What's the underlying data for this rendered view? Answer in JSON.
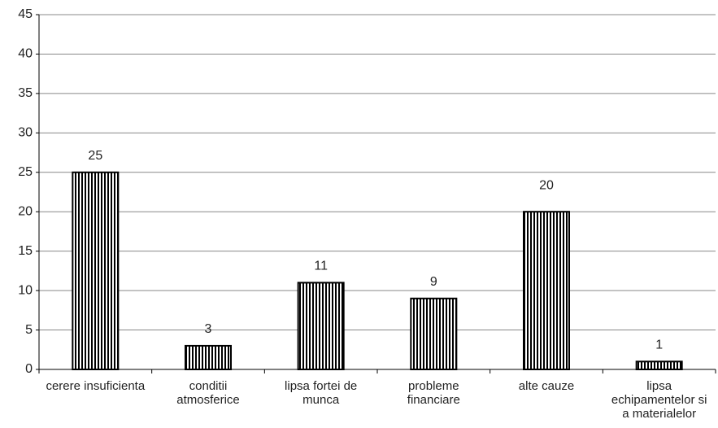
{
  "chart_data": {
    "type": "bar",
    "categories": [
      "cerere insuficienta",
      "conditii atmosferice",
      "lipsa fortei de munca",
      "probleme financiare",
      "alte cauze",
      "lipsa echipamentelor si a materialelor"
    ],
    "values": [
      25,
      3,
      11,
      9,
      20,
      1
    ],
    "color": "#000000",
    "ylim": [
      0,
      45
    ],
    "yticks": [
      0,
      5,
      10,
      15,
      20,
      25,
      30,
      35,
      40,
      45
    ],
    "grid": true
  }
}
